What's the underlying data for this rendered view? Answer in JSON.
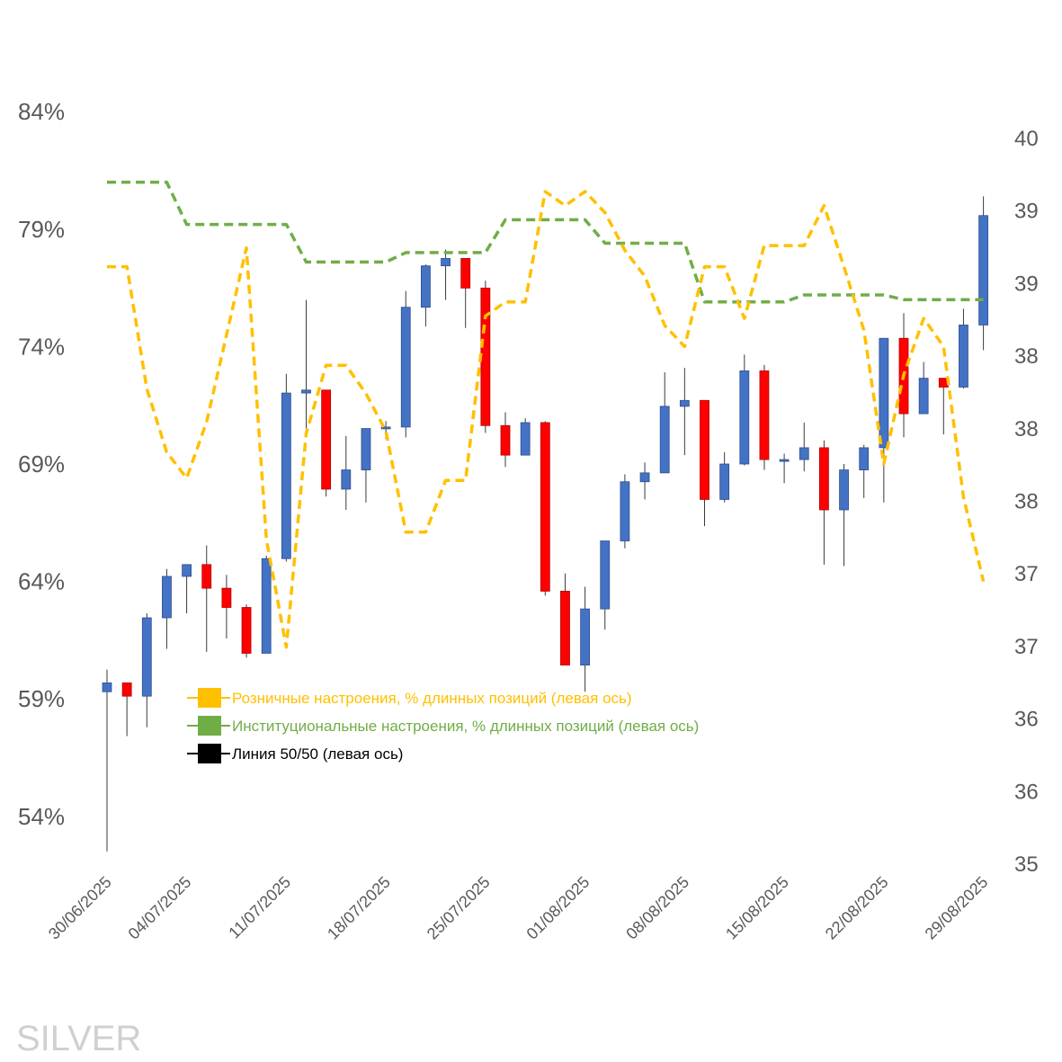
{
  "chart_data": {
    "type": "candlestick",
    "watermark": "SILVER",
    "colors": {
      "up": "#4472C4",
      "down": "#FF0000",
      "retail": "#FFC000",
      "institutional": "#70AD47",
      "fifty": "#000000",
      "tick_text": "#595959"
    },
    "left_axis": {
      "unit": "%",
      "ticks": [
        54,
        59,
        64,
        69,
        74,
        79,
        84
      ],
      "ylim": [
        52,
        86
      ]
    },
    "right_axis": {
      "ticks": [
        "35",
        "36",
        "36",
        "37",
        "37",
        "38",
        "38",
        "38",
        "39",
        "39",
        "40"
      ],
      "ylim": [
        34.92,
        40.32
      ]
    },
    "x_tick_labels": [
      "30/06/2025",
      "04/07/2025",
      "11/07/2025",
      "18/07/2025",
      "25/07/2025",
      "01/08/2025",
      "08/08/2025",
      "15/08/2025",
      "22/08/2025",
      "29/08/2025"
    ],
    "x_tick_positions": [
      0,
      4,
      9,
      14,
      19,
      24,
      29,
      34,
      39,
      44
    ],
    "legend": [
      {
        "key": "retail",
        "label": "Розничные настроения, % длинных позиций (левая ось)"
      },
      {
        "key": "institutional",
        "label": "Институциональные настроения, % длинных позиций (левая ось)"
      },
      {
        "key": "fifty",
        "label": "Линия 50/50 (левая ось)"
      }
    ],
    "candles": [
      {
        "o": 36.08,
        "h": 36.23,
        "l": 35.0,
        "c": 36.14
      },
      {
        "o": 36.14,
        "h": 36.08,
        "l": 35.78,
        "c": 36.05
      },
      {
        "o": 36.05,
        "h": 36.61,
        "l": 35.84,
        "c": 36.58
      },
      {
        "o": 36.58,
        "h": 36.91,
        "l": 36.37,
        "c": 36.86
      },
      {
        "o": 36.86,
        "h": 36.89,
        "l": 36.61,
        "c": 36.94
      },
      {
        "o": 36.94,
        "h": 37.07,
        "l": 36.35,
        "c": 36.78
      },
      {
        "o": 36.78,
        "h": 36.87,
        "l": 36.44,
        "c": 36.65
      },
      {
        "o": 36.65,
        "h": 36.67,
        "l": 36.31,
        "c": 36.34
      },
      {
        "o": 36.34,
        "h": 37.0,
        "l": 36.34,
        "c": 36.98
      },
      {
        "o": 36.98,
        "h": 38.23,
        "l": 36.96,
        "c": 38.1
      },
      {
        "o": 38.1,
        "h": 38.73,
        "l": 37.81,
        "c": 38.12
      },
      {
        "o": 38.12,
        "h": 37.92,
        "l": 37.4,
        "c": 37.45
      },
      {
        "o": 37.45,
        "h": 37.81,
        "l": 37.31,
        "c": 37.58
      },
      {
        "o": 37.58,
        "h": 37.72,
        "l": 37.36,
        "c": 37.86
      },
      {
        "o": 37.86,
        "h": 37.91,
        "l": 37.79,
        "c": 37.87
      },
      {
        "o": 37.87,
        "h": 38.79,
        "l": 37.8,
        "c": 38.68
      },
      {
        "o": 38.68,
        "h": 38.97,
        "l": 38.55,
        "c": 38.96
      },
      {
        "o": 38.96,
        "h": 39.07,
        "l": 38.73,
        "c": 39.01
      },
      {
        "o": 39.01,
        "h": 38.99,
        "l": 38.54,
        "c": 38.81
      },
      {
        "o": 38.81,
        "h": 38.86,
        "l": 37.83,
        "c": 37.88
      },
      {
        "o": 37.88,
        "h": 37.97,
        "l": 37.6,
        "c": 37.68
      },
      {
        "o": 37.68,
        "h": 37.93,
        "l": 37.71,
        "c": 37.9
      },
      {
        "o": 37.9,
        "h": 37.91,
        "l": 36.73,
        "c": 36.76
      },
      {
        "o": 36.76,
        "h": 36.88,
        "l": 36.45,
        "c": 36.26
      },
      {
        "o": 36.26,
        "h": 36.79,
        "l": 36.08,
        "c": 36.64
      },
      {
        "o": 36.64,
        "h": 37.1,
        "l": 36.5,
        "c": 37.1
      },
      {
        "o": 37.1,
        "h": 37.55,
        "l": 37.05,
        "c": 37.5
      },
      {
        "o": 37.5,
        "h": 37.63,
        "l": 37.38,
        "c": 37.56
      },
      {
        "o": 37.56,
        "h": 38.24,
        "l": 37.56,
        "c": 38.01
      },
      {
        "o": 38.01,
        "h": 38.27,
        "l": 37.68,
        "c": 38.05
      },
      {
        "o": 38.05,
        "h": 38.0,
        "l": 37.2,
        "c": 37.38
      },
      {
        "o": 37.38,
        "h": 37.7,
        "l": 37.36,
        "c": 37.62
      },
      {
        "o": 37.62,
        "h": 38.36,
        "l": 37.61,
        "c": 38.25
      },
      {
        "o": 38.25,
        "h": 38.29,
        "l": 37.58,
        "c": 37.65
      },
      {
        "o": 37.65,
        "h": 37.69,
        "l": 37.49,
        "c": 37.65
      },
      {
        "o": 37.65,
        "h": 37.9,
        "l": 37.57,
        "c": 37.73
      },
      {
        "o": 37.73,
        "h": 37.78,
        "l": 36.94,
        "c": 37.31
      },
      {
        "o": 37.31,
        "h": 37.62,
        "l": 36.93,
        "c": 37.58
      },
      {
        "o": 37.58,
        "h": 37.75,
        "l": 37.39,
        "c": 37.73
      },
      {
        "o": 37.73,
        "h": 38.47,
        "l": 37.36,
        "c": 38.47
      },
      {
        "o": 38.47,
        "h": 38.64,
        "l": 37.8,
        "c": 37.96
      },
      {
        "o": 37.96,
        "h": 38.31,
        "l": 38.06,
        "c": 38.2
      },
      {
        "o": 38.2,
        "h": 38.18,
        "l": 37.82,
        "c": 38.14
      },
      {
        "o": 38.14,
        "h": 38.67,
        "l": 38.13,
        "c": 38.56
      },
      {
        "o": 38.56,
        "h": 39.43,
        "l": 38.39,
        "c": 39.3
      }
    ],
    "retail": [
      77.4,
      77.4,
      72.2,
      69.5,
      68.4,
      70.8,
      74.5,
      78.2,
      65.8,
      61.2,
      70.3,
      73.2,
      73.2,
      72.0,
      70.4,
      66.1,
      66.1,
      68.3,
      68.3,
      75.3,
      75.9,
      75.9,
      80.6,
      80.0,
      80.6,
      79.7,
      78.1,
      77.0,
      74.9,
      74.0,
      77.4,
      77.4,
      75.2,
      78.3,
      78.3,
      78.3,
      80.0,
      77.4,
      74.7,
      69.0,
      72.8,
      75.2,
      74.0,
      67.6,
      64.0
    ],
    "institutional": [
      81.0,
      81.0,
      81.0,
      81.0,
      79.2,
      79.2,
      79.2,
      79.2,
      79.2,
      79.2,
      77.6,
      77.6,
      77.6,
      77.6,
      77.6,
      78.0,
      78.0,
      78.0,
      78.0,
      78.0,
      79.4,
      79.4,
      79.4,
      79.4,
      79.4,
      78.4,
      78.4,
      78.4,
      78.4,
      78.4,
      75.9,
      75.9,
      75.9,
      75.9,
      75.9,
      76.2,
      76.2,
      76.2,
      76.2,
      76.2,
      76.0,
      76.0,
      76.0,
      76.0,
      76.0
    ]
  }
}
